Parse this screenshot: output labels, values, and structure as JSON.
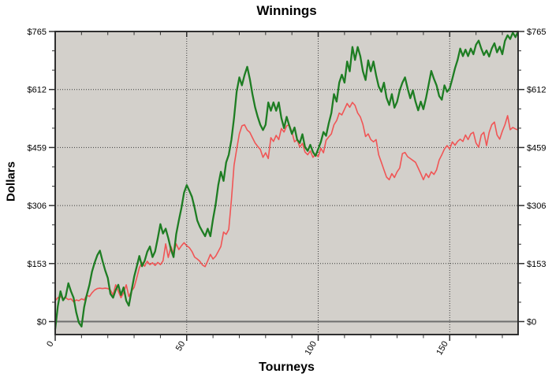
{
  "title": "Winnings",
  "colors": {
    "green_line": "#1e7d23",
    "red_line": "#f05555",
    "plot_background": "#d3d0cb",
    "grid": "#3a3a3a",
    "zero_line": "#6e6e6e",
    "axis_border": "#2f2f2f",
    "text": "#000000"
  },
  "chart_data": {
    "type": "line",
    "title": "Winnings",
    "xlabel": "Tourneys",
    "ylabel": "Dollars",
    "x_range": [
      0,
      176
    ],
    "y_range": [
      -34,
      765
    ],
    "x_step": 1,
    "grid": "dotted",
    "legend": "none",
    "y_ticks": [
      {
        "value": 0,
        "label": "$0"
      },
      {
        "value": 153,
        "label": "$153"
      },
      {
        "value": 306,
        "label": "$306"
      },
      {
        "value": 459,
        "label": "$459"
      },
      {
        "value": 612,
        "label": "$612"
      },
      {
        "value": 765,
        "label": "$765"
      }
    ],
    "x_ticks": [
      {
        "value": 0,
        "label": "0"
      },
      {
        "value": 50,
        "label": "50"
      },
      {
        "value": 100,
        "label": "100"
      },
      {
        "value": 150,
        "label": "150"
      }
    ],
    "y_minor_step": 51,
    "x_minor_step": 10,
    "grid_y": [
      153,
      306,
      459,
      612
    ],
    "grid_x": [
      50,
      100,
      150
    ],
    "series": [
      {
        "name": "green",
        "color": "#1e7d23",
        "width": 2.3,
        "values": [
          -20,
          40,
          80,
          56,
          66,
          101,
          80,
          63,
          24,
          -3,
          -13,
          38,
          70,
          97,
          132,
          155,
          175,
          187,
          160,
          135,
          115,
          73,
          63,
          83,
          97,
          70,
          90,
          55,
          42,
          80,
          118,
          145,
          173,
          146,
          160,
          184,
          198,
          170,
          185,
          220,
          257,
          232,
          245,
          220,
          190,
          170,
          230,
          267,
          300,
          340,
          360,
          345,
          329,
          300,
          267,
          250,
          237,
          225,
          245,
          225,
          270,
          308,
          360,
          395,
          371,
          420,
          440,
          480,
          537,
          606,
          644,
          623,
          650,
          672,
          640,
          600,
          565,
          540,
          519,
          505,
          519,
          578,
          556,
          578,
          556,
          578,
          537,
          510,
          540,
          517,
          495,
          512,
          480,
          471,
          494,
          460,
          450,
          466,
          447,
          437,
          455,
          474,
          500,
          490,
          523,
          550,
          600,
          580,
          630,
          651,
          630,
          686,
          660,
          724,
          690,
          724,
          700,
          660,
          637,
          689,
          660,
          686,
          650,
          620,
          606,
          630,
          590,
          571,
          600,
          564,
          580,
          610,
          630,
          644,
          615,
          589,
          610,
          580,
          557,
          580,
          560,
          590,
          625,
          661,
          640,
          623,
          595,
          585,
          623,
          606,
          615,
          640,
          668,
          690,
          720,
          700,
          717,
          700,
          720,
          705,
          730,
          741,
          720,
          703,
          715,
          699,
          720,
          734,
          710,
          725,
          705,
          740,
          755,
          745,
          762,
          750,
          765
        ]
      },
      {
        "name": "red",
        "color": "#f05555",
        "width": 1.6,
        "values": [
          55,
          63,
          66,
          60,
          63,
          58,
          60,
          52,
          57,
          55,
          60,
          57,
          70,
          66,
          76,
          83,
          87,
          88,
          87,
          88,
          87,
          83,
          70,
          97,
          80,
          63,
          76,
          97,
          66,
          80,
          90,
          115,
          142,
          156,
          146,
          159,
          150,
          155,
          148,
          156,
          150,
          160,
          205,
          169,
          198,
          180,
          205,
          190,
          200,
          208,
          200,
          195,
          185,
          170,
          165,
          159,
          149,
          145,
          160,
          177,
          165,
          172,
          185,
          198,
          236,
          230,
          243,
          322,
          412,
          454,
          495,
          516,
          519,
          505,
          499,
          485,
          471,
          462,
          454,
          433,
          445,
          430,
          485,
          475,
          491,
          480,
          509,
          500,
          516,
          519,
          500,
          474,
          480,
          460,
          470,
          447,
          440,
          450,
          433,
          442,
          435,
          457,
          445,
          478,
          487,
          495,
          519,
          530,
          550,
          545,
          560,
          575,
          565,
          578,
          570,
          550,
          540,
          520,
          488,
          495,
          480,
          474,
          480,
          440,
          420,
          400,
          381,
          374,
          390,
          380,
          395,
          405,
          443,
          446,
          435,
          430,
          425,
          420,
          405,
          390,
          374,
          390,
          380,
          395,
          388,
          400,
          426,
          440,
          455,
          464,
          455,
          474,
          465,
          475,
          481,
          475,
          492,
          480,
          495,
          499,
          471,
          460,
          492,
          499,
          464,
          499,
          519,
          526,
          492,
          481,
          502,
          519,
          543,
          506,
          512,
          508,
          505
        ]
      }
    ]
  }
}
